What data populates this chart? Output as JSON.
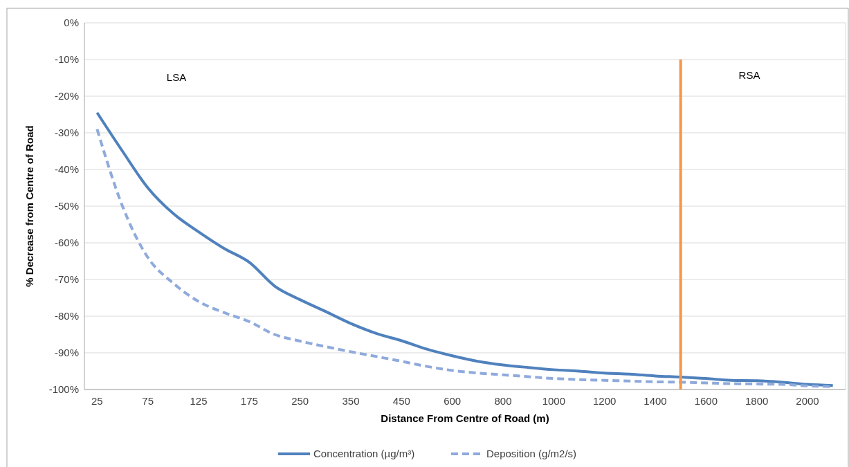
{
  "chart_data": {
    "type": "line",
    "xlabel": "Distance From Centre of Road (m)",
    "ylabel": "% Decrease from Centre of Road",
    "categories": [
      "25",
      null,
      "75",
      null,
      "125",
      null,
      "175",
      null,
      "250",
      null,
      "350",
      null,
      "450",
      null,
      "600",
      null,
      "800",
      null,
      "1000",
      null,
      "1200",
      null,
      "1400",
      null,
      "1600",
      null,
      "1800",
      null,
      "2000",
      null
    ],
    "series": [
      {
        "name": "Concentration (µg/m³)",
        "color": "#4f81bd",
        "line_style": "solid",
        "values": [
          -24.5,
          -35,
          -45,
          -52,
          -57,
          -61.5,
          -65.3,
          -71.8,
          -75.5,
          -78.7,
          -82,
          -84.7,
          -86.7,
          -89,
          -90.8,
          -92.3,
          -93.3,
          -94,
          -94.6,
          -95,
          -95.5,
          -95.8,
          -96.3,
          -96.6,
          -97,
          -97.5,
          -97.6,
          -98,
          -98.6,
          -98.9
        ]
      },
      {
        "name": "Deposition (g/m2/s)",
        "color": "#8faadc",
        "line_style": "dashed",
        "values": [
          -29,
          -50,
          -64,
          -71,
          -76,
          -79,
          -81.5,
          -85,
          -86.8,
          -88.3,
          -89.7,
          -91,
          -92.3,
          -93.7,
          -94.8,
          -95.5,
          -96,
          -96.5,
          -97,
          -97.3,
          -97.5,
          -97.7,
          -97.9,
          -98,
          -98.2,
          -98.4,
          -98.5,
          -98.6,
          -99,
          -99.2
        ]
      }
    ],
    "ylim": [
      -100,
      0
    ],
    "yticks": [
      {
        "value": -100,
        "label": "-100%"
      },
      {
        "value": -90,
        "label": "-90%"
      },
      {
        "value": -80,
        "label": "-80%"
      },
      {
        "value": -70,
        "label": "-70%"
      },
      {
        "value": -60,
        "label": "-60%"
      },
      {
        "value": -50,
        "label": "-50%"
      },
      {
        "value": -40,
        "label": "-40%"
      },
      {
        "value": -30,
        "label": "-30%"
      },
      {
        "value": -20,
        "label": "-20%"
      },
      {
        "value": -10,
        "label": "-10%"
      },
      {
        "value": 0,
        "label": "0%"
      }
    ],
    "annotations": [
      "LSA",
      "RSA"
    ],
    "grid": "y",
    "legend": "bottom"
  }
}
